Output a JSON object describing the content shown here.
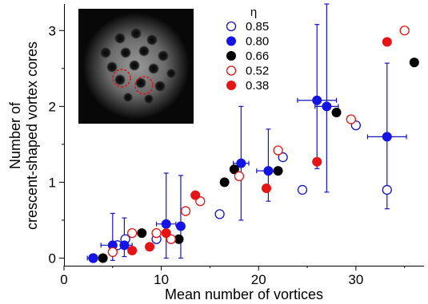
{
  "chart_data": {
    "type": "scatter",
    "title": "",
    "xlabel": "Mean number of vortices",
    "ylabel_lines": [
      "Number of",
      "crescent-shaped vortex cores"
    ],
    "xlim": [
      0,
      37
    ],
    "ylim": [
      -0.1,
      3.35
    ],
    "xticks": [
      0,
      10,
      20,
      30
    ],
    "yticks": [
      0,
      1,
      2,
      3
    ],
    "legend_title": "η",
    "legend_position": "top-center",
    "inset": "grayscale vortex lattice image with two red dashed circles marking crescent-shaped cores",
    "series": [
      {
        "name": "0.85",
        "color": "#1414c8",
        "filled": false,
        "x": [
          3,
          5.5,
          6.3,
          9.5,
          16,
          22.5,
          24.5,
          30,
          33.2
        ],
        "y": [
          0,
          0.17,
          0.25,
          0.25,
          0.58,
          1.33,
          0.9,
          1.75,
          0.9
        ]
      },
      {
        "name": "0.80",
        "color": "#1414e6",
        "filled": true,
        "x": [
          3,
          5,
          6.2,
          10.5,
          12,
          18.2,
          21,
          26,
          27,
          33.2
        ],
        "y": [
          0,
          0.17,
          0.17,
          0.45,
          0.42,
          1.25,
          1.15,
          2.08,
          2.0,
          1.6
        ]
      },
      {
        "name": "0.66",
        "color": "#000000",
        "filled": true,
        "x": [
          4,
          8,
          11.8,
          16.5,
          17.5,
          22,
          28,
          36
        ],
        "y": [
          0,
          0.33,
          0.25,
          1.0,
          1.17,
          1.15,
          1.92,
          2.58
        ]
      },
      {
        "name": "0.52",
        "color": "#e61414",
        "filled": false,
        "x": [
          5,
          7,
          9.5,
          11,
          12.5,
          14,
          18,
          22,
          29.5,
          35
        ],
        "y": [
          0.08,
          0.33,
          0.33,
          0.25,
          0.62,
          0.75,
          1.08,
          1.42,
          1.83,
          3.0
        ]
      },
      {
        "name": "0.38",
        "color": "#e61414",
        "filled": true,
        "x": [
          7,
          8.8,
          10.5,
          13.5,
          20.8,
          26,
          33.2
        ],
        "y": [
          0.1,
          0.15,
          0.33,
          0.83,
          0.92,
          1.27,
          2.85
        ]
      }
    ],
    "error_bars": [
      {
        "x": 3,
        "y": 0,
        "xerr": 0.6,
        "yerr_low": 0,
        "yerr_high": 0
      },
      {
        "x": 5,
        "y": 0.17,
        "xerr": 1.2,
        "yerr_low": 0.2,
        "yerr_high": 0.42
      },
      {
        "x": 6.2,
        "y": 0.17,
        "xerr": 0.8,
        "yerr_low": 0.15,
        "yerr_high": 0.36
      },
      {
        "x": 10.5,
        "y": 0.45,
        "xerr": 1.0,
        "yerr_low": 0.45,
        "yerr_high": 0.67
      },
      {
        "x": 12,
        "y": 0.42,
        "xerr": 0.3,
        "yerr_low": 0.42,
        "yerr_high": 0.67
      },
      {
        "x": 18.2,
        "y": 1.25,
        "xerr": 0.8,
        "yerr_low": 0.75,
        "yerr_high": 0.75
      },
      {
        "x": 21,
        "y": 1.15,
        "xerr": 1.2,
        "yerr_low": 0.4,
        "yerr_high": 0.55
      },
      {
        "x": 26,
        "y": 2.08,
        "xerr": 2.0,
        "yerr_low": 0.9,
        "yerr_high": 1.0
      },
      {
        "x": 27,
        "y": 2.0,
        "xerr": 1.2,
        "yerr_low": 1.13,
        "yerr_high": 1.35
      },
      {
        "x": 33.2,
        "y": 1.6,
        "xerr": 2.0,
        "yerr_low": 0.95,
        "yerr_high": 0.97
      }
    ]
  }
}
